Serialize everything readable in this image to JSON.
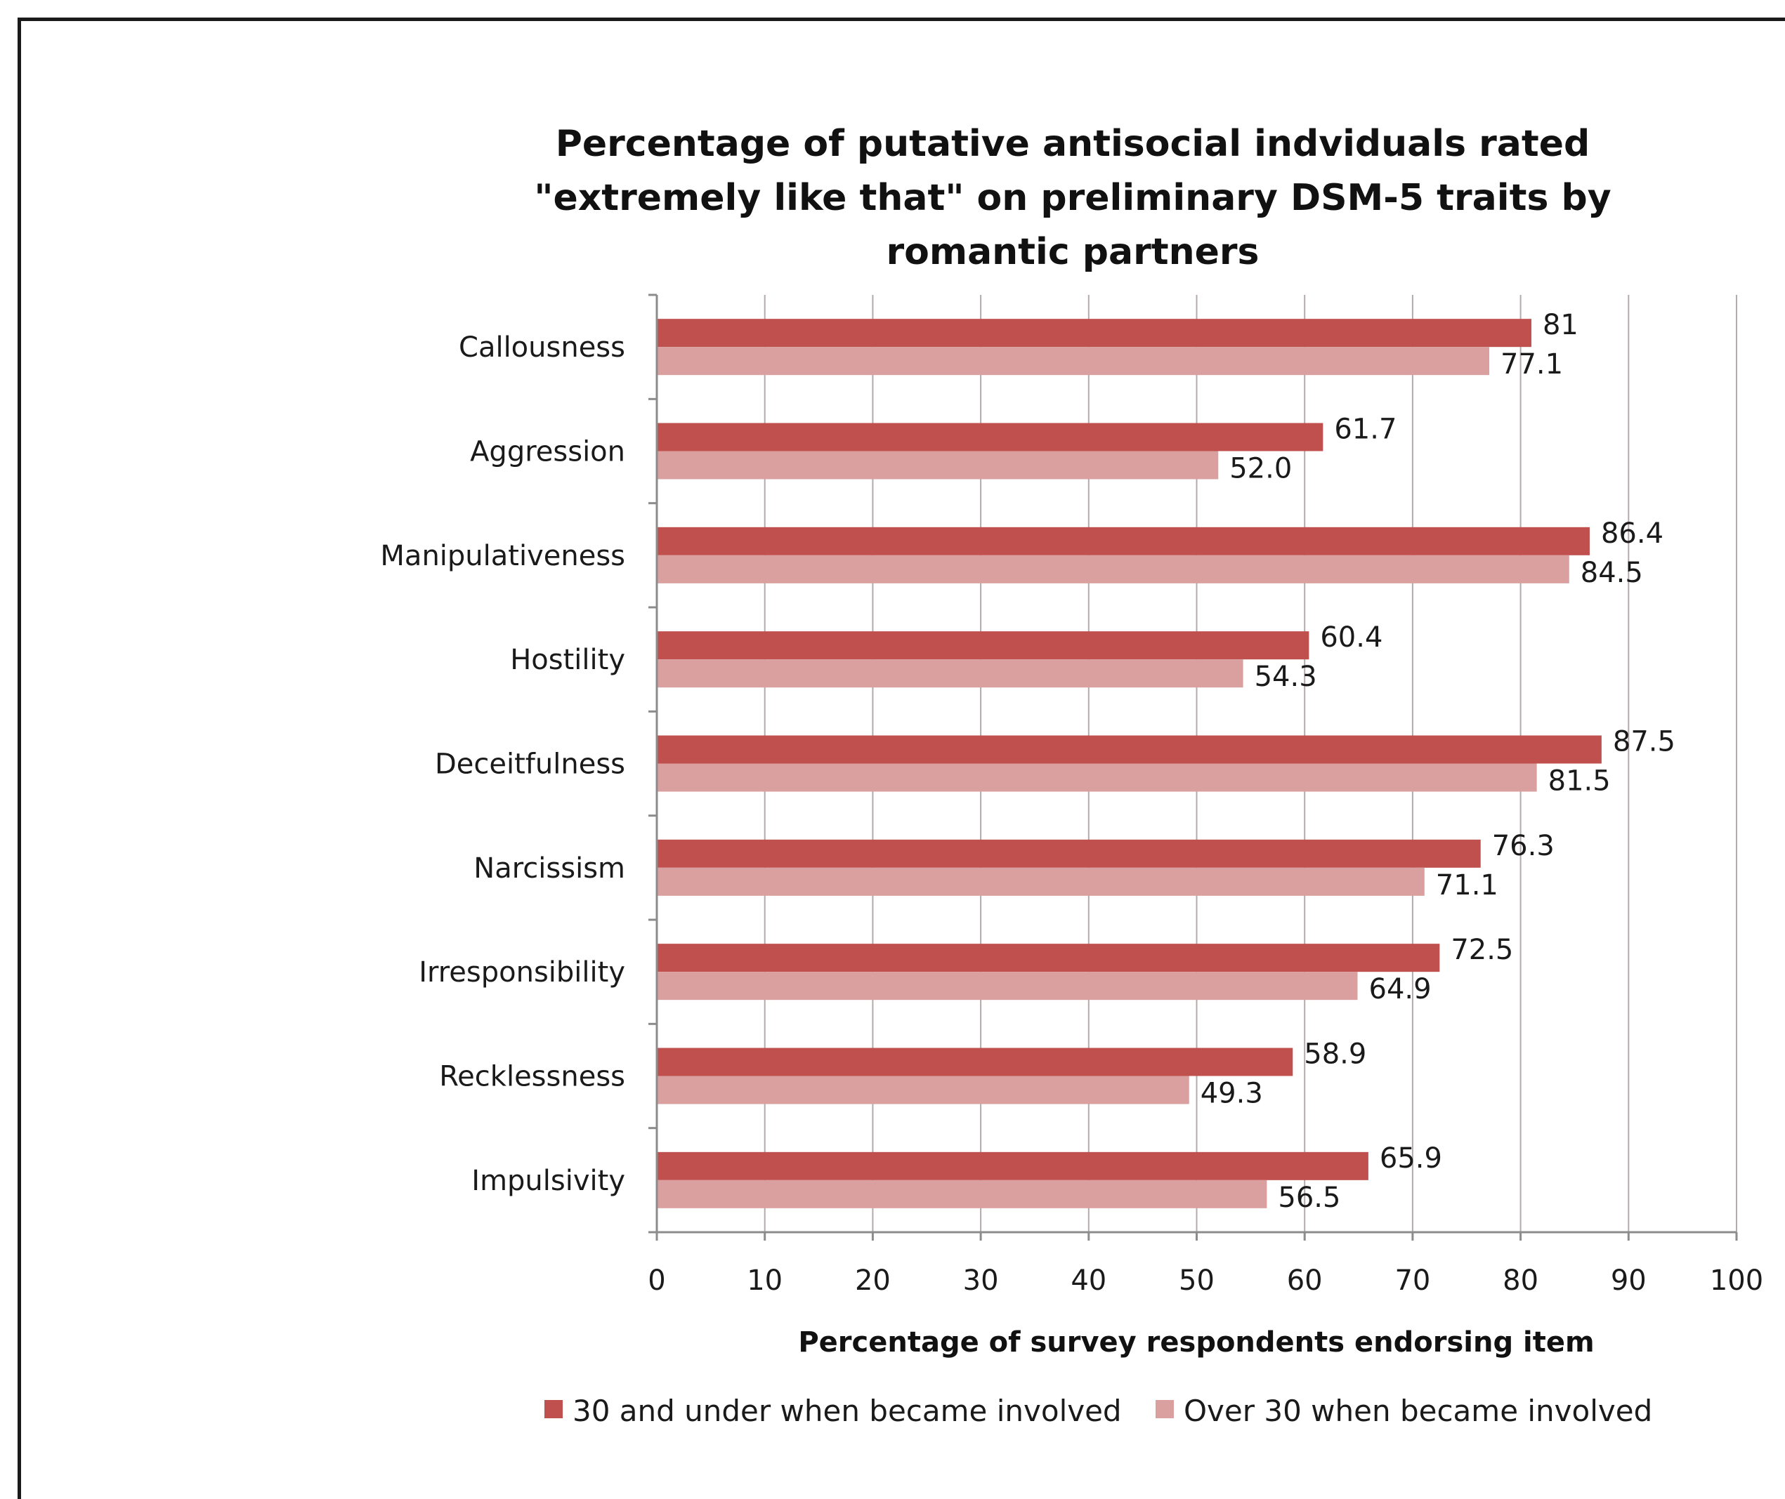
{
  "chart_data": {
    "type": "bar",
    "orientation": "horizontal",
    "title_lines": [
      "Percentage of putative antisocial indviduals rated",
      "\"extremely like that\" on preliminary DSM-5 traits by",
      "romantic partners"
    ],
    "categories": [
      "Callousness",
      "Aggression",
      "Manipulativeness",
      "Hostility",
      "Deceitfulness",
      "Narcissism",
      "Irresponsibility",
      "Recklessness",
      "Impulsivity"
    ],
    "series": [
      {
        "name": "30 and under when became involved",
        "color": "#c0504d",
        "values": [
          81,
          61.7,
          86.4,
          60.4,
          87.5,
          76.3,
          72.5,
          58.9,
          65.9
        ],
        "labels": [
          "81",
          "61.7",
          "86.4",
          "60.4",
          "87.5",
          "76.3",
          "72.5",
          "58.9",
          "65.9"
        ]
      },
      {
        "name": "Over 30 when became involved",
        "color": "#d9a09f",
        "values": [
          77.1,
          52.0,
          84.5,
          54.3,
          81.5,
          71.1,
          64.9,
          49.3,
          56.5
        ],
        "labels": [
          "77.1",
          "52.0",
          "84.5",
          "54.3",
          "81.5",
          "71.1",
          "64.9",
          "49.3",
          "56.5"
        ]
      }
    ],
    "xlabel": "Percentage of survey respondents endorsing item",
    "xlim": [
      0,
      100
    ],
    "xticks": [
      0,
      10,
      20,
      30,
      40,
      50,
      60,
      70,
      80,
      90,
      100
    ],
    "grid": true,
    "legend": "bottom"
  }
}
